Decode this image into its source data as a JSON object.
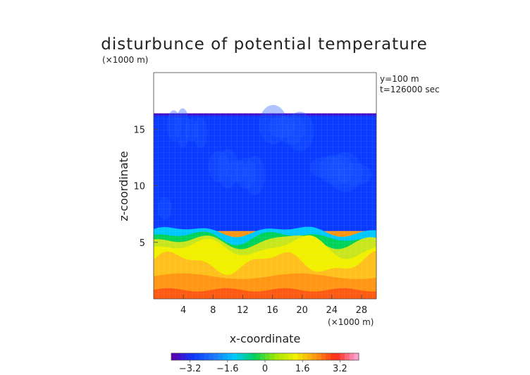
{
  "chart_data": {
    "type": "heatmap",
    "title": "disturbunce of potential temperature",
    "y_scale_note": "(×1000 m)",
    "x_scale_note": "(×1000 m)",
    "xlabel": "x-coordinate",
    "ylabel": "z-coordinate",
    "annotations": [
      "y=100 m",
      "t=126000 sec"
    ],
    "x_range": [
      0,
      30
    ],
    "y_range": [
      0,
      20
    ],
    "x_ticks": [
      4,
      8,
      12,
      16,
      20,
      24,
      28
    ],
    "y_ticks": [
      5,
      10,
      15
    ],
    "field_top_z": 16.4,
    "colorbar": {
      "range": [
        -4,
        4
      ],
      "tick_values": [
        -3.2,
        -1.6,
        0,
        1.6,
        3.2
      ],
      "tick_labels": [
        "−3.2",
        "−1.6",
        "0",
        "1.6",
        "3.2"
      ]
    },
    "colors": {
      "violet": "#5a00b4",
      "blue": "#0a3cff",
      "cyan": "#00c8ff",
      "green": "#00d25a",
      "yellow": "#f0f000",
      "orange": "#ff9614",
      "red": "#ff2814",
      "pink": "#ff9fd0"
    }
  }
}
